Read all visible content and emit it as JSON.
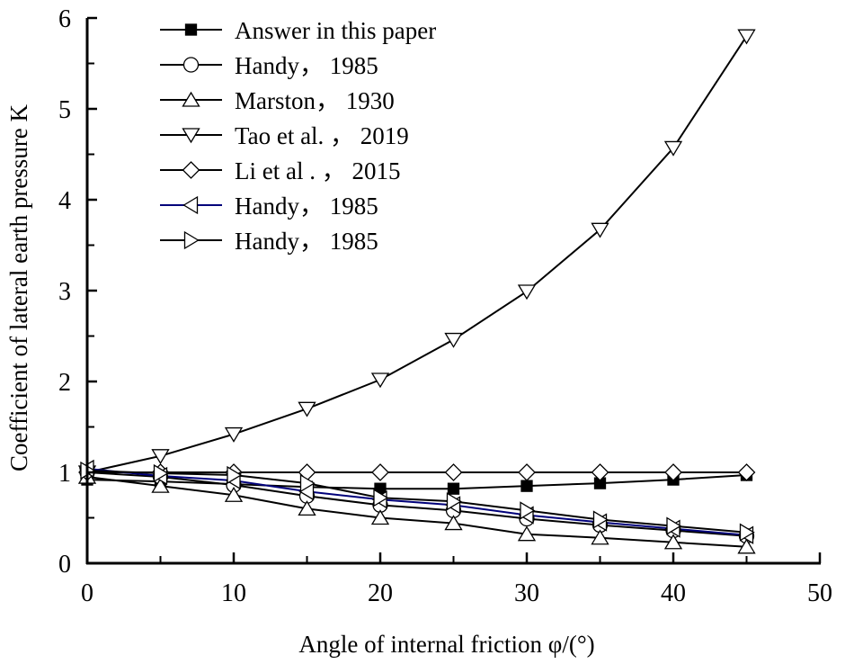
{
  "chart_data": {
    "type": "line",
    "title": "",
    "xlabel": "Angle of internal friction φ/(°)",
    "ylabel": "Coefficient of lateral earth pressure K",
    "xlim": [
      0,
      50
    ],
    "ylim": [
      0,
      6
    ],
    "xticks": [
      0,
      10,
      20,
      30,
      40,
      50
    ],
    "xticks_minor": [
      5,
      15,
      25,
      35,
      45
    ],
    "yticks": [
      0,
      1,
      2,
      3,
      4,
      5,
      6
    ],
    "yticks_minor": [
      0.5,
      1.5,
      2.5,
      3.5,
      4.5,
      5.5
    ],
    "grid": false,
    "legend_position": "upper-left",
    "x": [
      0,
      5,
      10,
      15,
      20,
      25,
      30,
      35,
      40,
      45
    ],
    "series": [
      {
        "name": "Answer in this paper",
        "marker": "square-filled",
        "line_color": "#000000",
        "values": [
          0.92,
          0.9,
          0.87,
          0.84,
          0.82,
          0.82,
          0.85,
          0.88,
          0.92,
          0.97
        ]
      },
      {
        "name": "Handy， 1985",
        "marker": "circle",
        "line_color": "#000000",
        "values": [
          1.0,
          0.95,
          0.86,
          0.74,
          0.64,
          0.58,
          0.49,
          0.42,
          0.36,
          0.3
        ]
      },
      {
        "name": "Marston， 1930",
        "marker": "triangle-up",
        "line_color": "#000000",
        "values": [
          0.95,
          0.85,
          0.75,
          0.6,
          0.5,
          0.44,
          0.32,
          0.28,
          0.23,
          0.18
        ]
      },
      {
        "name": "Tao et al. ， 2019",
        "marker": "triangle-down",
        "line_color": "#000000",
        "values": [
          1.0,
          1.18,
          1.42,
          1.7,
          2.02,
          2.46,
          2.99,
          3.67,
          4.57,
          5.8
        ]
      },
      {
        "name": "Li et al . ， 2015",
        "marker": "diamond",
        "line_color": "#000000",
        "values": [
          1.0,
          1.0,
          1.0,
          1.0,
          1.0,
          1.0,
          1.0,
          1.0,
          1.0,
          1.0
        ]
      },
      {
        "name": "Handy， 1985",
        "marker": "triangle-left",
        "line_color": "#00007a",
        "values": [
          1.04,
          0.96,
          0.91,
          0.79,
          0.7,
          0.64,
          0.53,
          0.45,
          0.38,
          0.31
        ]
      },
      {
        "name": "Handy， 1985",
        "marker": "triangle-right",
        "line_color": "#000000",
        "values": [
          1.02,
          0.99,
          0.97,
          0.88,
          0.72,
          0.68,
          0.58,
          0.48,
          0.41,
          0.34
        ]
      }
    ]
  }
}
